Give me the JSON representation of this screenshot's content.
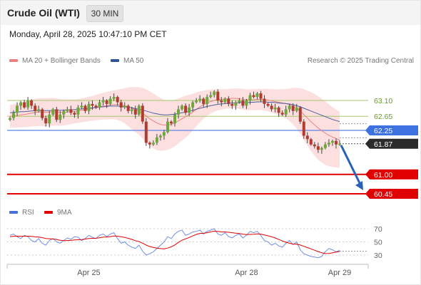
{
  "header": {
    "title": "Crude Oil (WTI)",
    "interval": "30 MIN"
  },
  "datetime": "Monday, April 28, 2025 10:47:10 PM CET",
  "legend": {
    "items": [
      {
        "label": "MA 20 + Bollinger Bands",
        "color": "#f08080"
      },
      {
        "label": "MA 50",
        "color": "#2f5597"
      }
    ],
    "credit": "Research © 2025 Trading Central"
  },
  "rsi_legend": {
    "items": [
      {
        "label": "RSI",
        "color": "#4a6fd8"
      },
      {
        "label": "9MA",
        "color": "#e00000"
      }
    ]
  },
  "chart_data": [
    {
      "type": "candlestick",
      "title": "Crude Oil (WTI)",
      "interval": "30 MIN",
      "x_ticks": [
        "Apr 25",
        "Apr 28",
        "Apr 29"
      ],
      "ylim": [
        60.3,
        63.9
      ],
      "grid": false,
      "legend_position": "top-left",
      "levels": [
        {
          "label": "63.10",
          "value": 63.1,
          "style": "green-line"
        },
        {
          "label": "62.65",
          "value": 62.65,
          "style": "green-line"
        },
        {
          "label": "62.25",
          "value": 62.25,
          "style": "blue-badge"
        },
        {
          "label": "61.87",
          "value": 61.87,
          "style": "last-price-badge"
        },
        {
          "label": "61.00",
          "value": 61.0,
          "style": "red-badge"
        },
        {
          "label": "60.45",
          "value": 60.45,
          "style": "red-badge"
        }
      ],
      "closes": [
        62.6,
        62.75,
        62.95,
        63.05,
        62.9,
        63.1,
        62.95,
        62.8,
        62.85,
        62.6,
        62.45,
        62.7,
        62.85,
        62.55,
        62.7,
        62.8,
        62.85,
        62.75,
        62.7,
        62.9,
        62.95,
        62.8,
        63.0,
        62.95,
        62.9,
        63.05,
        63.1,
        63.0,
        63.15,
        63.2,
        63.05,
        62.9,
        62.95,
        62.8,
        62.85,
        62.7,
        62.95,
        62.5,
        61.9,
        61.85,
        61.9,
        62.05,
        62.1,
        62.2,
        62.5,
        62.45,
        62.7,
        62.85,
        62.95,
        62.75,
        62.9,
        63.05,
        63.1,
        63.15,
        63.0,
        63.2,
        63.25,
        63.35,
        63.1,
        63.05,
        63.15,
        63.0,
        62.95,
        63.05,
        63.1,
        62.95,
        63.1,
        63.25,
        63.2,
        63.3,
        63.15,
        63.0,
        62.95,
        62.85,
        62.9,
        62.75,
        62.7,
        62.85,
        62.95,
        62.8,
        62.9,
        62.5,
        62.1,
        62.0,
        61.85,
        61.8,
        61.7,
        61.75,
        61.85,
        61.9,
        61.95,
        61.85,
        61.87
      ],
      "ma20": [
        62.65,
        62.66,
        62.67,
        62.69,
        62.7,
        62.72,
        62.74,
        62.76,
        62.77,
        62.77,
        62.76,
        62.77,
        62.78,
        62.77,
        62.76,
        62.76,
        62.77,
        62.78,
        62.79,
        62.8,
        62.82,
        62.84,
        62.86,
        62.88,
        62.9,
        62.92,
        62.94,
        62.95,
        62.97,
        62.98,
        62.98,
        62.97,
        62.95,
        62.92,
        62.88,
        62.84,
        62.8,
        62.74,
        62.66,
        62.58,
        62.52,
        62.46,
        62.42,
        62.4,
        62.4,
        62.42,
        62.46,
        62.52,
        62.58,
        62.64,
        62.7,
        62.77,
        62.85,
        62.92,
        62.98,
        63.03,
        63.07,
        63.1,
        63.12,
        63.13,
        63.14,
        63.15,
        63.16,
        63.16,
        63.15,
        63.13,
        63.12,
        63.12,
        63.12,
        63.13,
        63.13,
        63.12,
        63.11,
        63.09,
        63.07,
        63.05,
        63.03,
        63.01,
        62.98,
        62.94,
        62.88,
        62.8,
        62.7,
        62.6,
        62.5,
        62.41,
        62.32,
        62.24,
        62.17,
        62.11,
        62.06,
        62.02,
        61.98
      ],
      "ma50": [
        62.75,
        62.76,
        62.77,
        62.78,
        62.78,
        62.79,
        62.8,
        62.81,
        62.81,
        62.81,
        62.81,
        62.81,
        62.82,
        62.82,
        62.82,
        62.82,
        62.83,
        62.83,
        62.84,
        62.85,
        62.86,
        62.87,
        62.88,
        62.89,
        62.9,
        62.91,
        62.92,
        62.93,
        62.94,
        62.94,
        62.94,
        62.93,
        62.92,
        62.91,
        62.89,
        62.87,
        62.85,
        62.83,
        62.8,
        62.77,
        62.74,
        62.72,
        62.7,
        62.69,
        62.69,
        62.7,
        62.71,
        62.73,
        62.75,
        62.77,
        62.79,
        62.82,
        62.85,
        62.88,
        62.9,
        62.93,
        62.95,
        62.97,
        62.99,
        63.0,
        63.01,
        63.02,
        63.03,
        63.03,
        63.04,
        63.04,
        63.04,
        63.05,
        63.05,
        63.06,
        63.06,
        63.06,
        63.05,
        63.05,
        63.04,
        63.03,
        63.02,
        63.01,
        63.0,
        62.98,
        62.95,
        62.92,
        62.88,
        62.84,
        62.8,
        62.76,
        62.72,
        62.68,
        62.64,
        62.6,
        62.56,
        62.53,
        62.5
      ],
      "bb_width": [
        0.32,
        0.33,
        0.34,
        0.35,
        0.36,
        0.37,
        0.38,
        0.39,
        0.39,
        0.4,
        0.4,
        0.4,
        0.39,
        0.39,
        0.38,
        0.37,
        0.36,
        0.35,
        0.34,
        0.34,
        0.34,
        0.34,
        0.35,
        0.35,
        0.36,
        0.37,
        0.38,
        0.39,
        0.4,
        0.41,
        0.43,
        0.46,
        0.5,
        0.55,
        0.6,
        0.64,
        0.68,
        0.72,
        0.76,
        0.78,
        0.78,
        0.77,
        0.75,
        0.72,
        0.7,
        0.68,
        0.66,
        0.64,
        0.62,
        0.6,
        0.56,
        0.52,
        0.48,
        0.44,
        0.4,
        0.37,
        0.34,
        0.32,
        0.3,
        0.29,
        0.28,
        0.28,
        0.28,
        0.28,
        0.29,
        0.3,
        0.3,
        0.3,
        0.3,
        0.3,
        0.3,
        0.31,
        0.32,
        0.33,
        0.35,
        0.37,
        0.39,
        0.42,
        0.46,
        0.52,
        0.58,
        0.65,
        0.72,
        0.78,
        0.84,
        0.88,
        0.9,
        0.91,
        0.9,
        0.88,
        0.85,
        0.82,
        0.8
      ]
    },
    {
      "type": "line",
      "title": "RSI",
      "ylim": [
        22,
        78
      ],
      "y_ticks": [
        70,
        50,
        30
      ],
      "series": [
        {
          "name": "RSI",
          "values": [
            60,
            62,
            58,
            55,
            60,
            58,
            52,
            50,
            55,
            48,
            45,
            52,
            55,
            50,
            48,
            52,
            56,
            54,
            58,
            57,
            52,
            55,
            60,
            57,
            55,
            60,
            62,
            58,
            62,
            64,
            55,
            48,
            50,
            45,
            42,
            40,
            45,
            36,
            30,
            32,
            35,
            40,
            45,
            50,
            58,
            55,
            62,
            66,
            68,
            60,
            62,
            65,
            66,
            68,
            62,
            66,
            68,
            70,
            62,
            60,
            64,
            58,
            56,
            60,
            62,
            56,
            60,
            66,
            64,
            66,
            60,
            52,
            50,
            45,
            48,
            44,
            42,
            48,
            52,
            46,
            50,
            38,
            32,
            30,
            28,
            27,
            26,
            28,
            35,
            40,
            38,
            35,
            37
          ]
        },
        {
          "name": "9MA",
          "values": [
            58,
            58.5,
            58.8,
            58.5,
            58.6,
            58.7,
            58.3,
            57.7,
            57.4,
            56.5,
            55.2,
            54.8,
            54.4,
            53.7,
            52.5,
            51.8,
            52,
            52.3,
            53,
            53.2,
            53.5,
            54.3,
            55.2,
            55.4,
            55.5,
            56.3,
            57.3,
            57.4,
            58,
            59,
            58.7,
            57.8,
            56.8,
            55.4,
            53.8,
            51.8,
            50.4,
            48.1,
            45.2,
            43,
            41.7,
            40.6,
            39.8,
            39.4,
            40.6,
            42.5,
            45.4,
            49.2,
            52.5,
            54.7,
            56.7,
            59.1,
            61.3,
            62.9,
            63.1,
            63.9,
            65.2,
            66.2,
            65.8,
            65.2,
            65.1,
            64.6,
            63.9,
            63.2,
            62.8,
            61.8,
            61.1,
            61.3,
            61.7,
            62.2,
            61.8,
            60.6,
            59.3,
            57.7,
            56,
            53.7,
            51.4,
            49.5,
            48,
            46.6,
            46.6,
            45.2,
            43.3,
            41.4,
            39.4,
            37.3,
            35.3,
            33.5,
            32.3,
            32.5,
            33.5,
            34.7,
            35.4
          ]
        }
      ]
    }
  ]
}
